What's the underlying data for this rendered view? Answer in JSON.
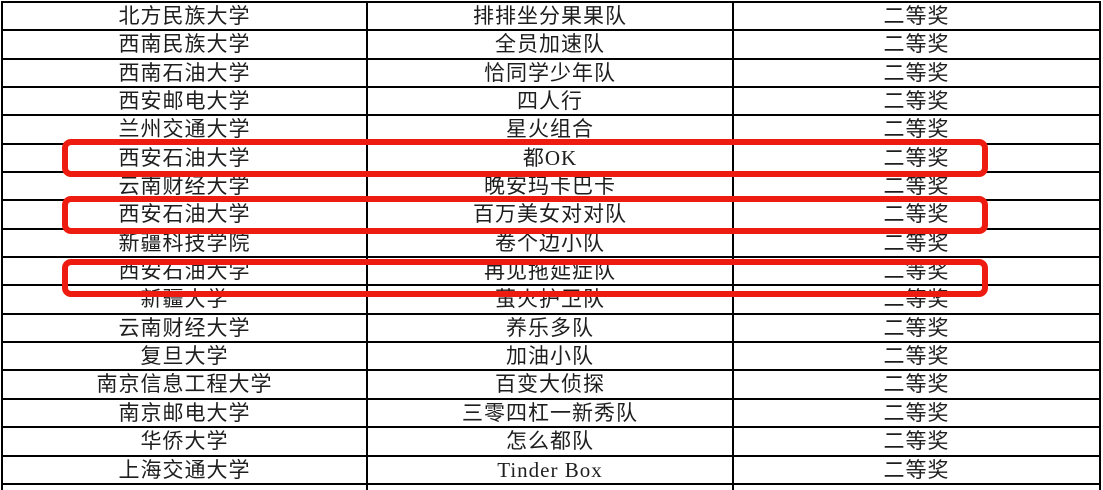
{
  "table": {
    "award_label_common": "二等奖",
    "rows": [
      {
        "university": "北方民族大学",
        "team": "排排坐分果果队",
        "award": "二等奖",
        "highlighted": false
      },
      {
        "university": "西南民族大学",
        "team": "全员加速队",
        "award": "二等奖",
        "highlighted": false
      },
      {
        "university": "西南石油大学",
        "team": "恰同学少年队",
        "award": "二等奖",
        "highlighted": false
      },
      {
        "university": "西安邮电大学",
        "team": "四人行",
        "award": "二等奖",
        "highlighted": false
      },
      {
        "university": "兰州交通大学",
        "team": "星火组合",
        "award": "二等奖",
        "highlighted": false
      },
      {
        "university": "西安石油大学",
        "team": "都OK",
        "award": "二等奖",
        "highlighted": true
      },
      {
        "university": "云南财经大学",
        "team": "晚安玛卡巴卡",
        "award": "二等奖",
        "highlighted": false
      },
      {
        "university": "西安石油大学",
        "team": "百万美女对对队",
        "award": "二等奖",
        "highlighted": true
      },
      {
        "university": "新疆科技学院",
        "team": "卷个边小队",
        "award": "二等奖",
        "highlighted": false
      },
      {
        "university": "西安石油大学",
        "team": "再见拖延症队",
        "award": "二等奖",
        "highlighted": true
      },
      {
        "university": "新疆大学",
        "team": "萤火护卫队",
        "award": "二等奖",
        "highlighted": false
      },
      {
        "university": "云南财经大学",
        "team": "养乐多队",
        "award": "二等奖",
        "highlighted": false
      },
      {
        "university": "复旦大学",
        "team": "加油小队",
        "award": "二等奖",
        "highlighted": false
      },
      {
        "university": "南京信息工程大学",
        "team": "百变大侦探",
        "award": "二等奖",
        "highlighted": false
      },
      {
        "university": "南京邮电大学",
        "team": "三零四杠一新秀队",
        "award": "二等奖",
        "highlighted": false
      },
      {
        "university": "华侨大学",
        "team": "怎么都队",
        "award": "二等奖",
        "highlighted": false
      },
      {
        "university": "上海交通大学",
        "team": "Tinder Box",
        "award": "二等奖",
        "highlighted": false
      }
    ]
  },
  "colors": {
    "grid": "#000000",
    "text": "#1e1e1e",
    "highlight_red": "#ee1c10"
  }
}
